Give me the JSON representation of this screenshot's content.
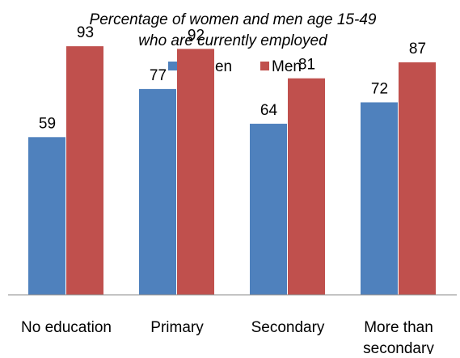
{
  "chart_data": {
    "type": "bar",
    "title": "Percentage of women and men age 15-49",
    "subtitle": "who are currently employed",
    "categories": [
      "No education",
      "Primary",
      "Secondary",
      "More than secondary"
    ],
    "category_lines": [
      [
        "No education"
      ],
      [
        "Primary"
      ],
      [
        "Secondary"
      ],
      [
        "More than",
        "secondary"
      ]
    ],
    "series": [
      {
        "name": "Women",
        "color": "#4F81BD",
        "values": [
          59,
          77,
          64,
          72
        ]
      },
      {
        "name": "Men",
        "color": "#C0504D",
        "values": [
          93,
          92,
          81,
          87
        ]
      }
    ],
    "ylim": [
      0,
      100
    ],
    "grid": false,
    "legend_position": "top",
    "data_labels": true
  }
}
